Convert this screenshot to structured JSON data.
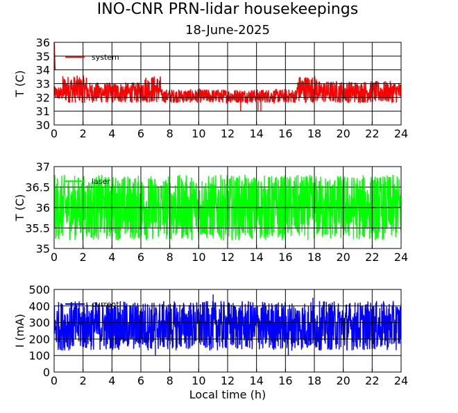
{
  "figure": {
    "title": "INO-CNR PRN-lidar housekeepings",
    "subtitle": "18-June-2025"
  },
  "chart_data": [
    {
      "type": "line",
      "ylabel": "T (C)",
      "xlabel": "",
      "xlim": [
        0,
        24
      ],
      "ylim": [
        30,
        36
      ],
      "xticks": [
        "0",
        "2",
        "4",
        "6",
        "8",
        "10",
        "12",
        "14",
        "16",
        "18",
        "20",
        "22",
        "24"
      ],
      "yticks": [
        "30",
        "31",
        "32",
        "33",
        "34",
        "35",
        "36"
      ],
      "grid": true,
      "legend_position": "top-left",
      "series": [
        {
          "name": "system",
          "color": "#ff0000",
          "spike": [
            [
              0.0,
              36.0
            ],
            [
              0.06,
              34.0
            ]
          ],
          "segments": [
            {
              "x0": 0.0,
              "x1": 0.6,
              "lo": 31.8,
              "hi": 32.8
            },
            {
              "x0": 0.6,
              "x1": 2.3,
              "lo": 31.6,
              "hi": 33.6
            },
            {
              "x0": 2.3,
              "x1": 6.1,
              "lo": 31.6,
              "hi": 33.1
            },
            {
              "x0": 6.1,
              "x1": 7.4,
              "lo": 31.6,
              "hi": 33.6
            },
            {
              "x0": 7.4,
              "x1": 16.8,
              "lo": 31.6,
              "hi": 32.6
            },
            {
              "x0": 16.8,
              "x1": 18.2,
              "lo": 31.6,
              "hi": 33.6
            },
            {
              "x0": 18.2,
              "x1": 24.0,
              "lo": 31.6,
              "hi": 33.2
            }
          ],
          "dips": [
            [
              12.9,
              31.0
            ],
            [
              14.1,
              31.0
            ],
            [
              14.3,
              31.0
            ]
          ]
        }
      ]
    },
    {
      "type": "line",
      "ylabel": "T (C)",
      "xlabel": "",
      "xlim": [
        0,
        24
      ],
      "ylim": [
        35,
        37
      ],
      "xticks": [
        "0",
        "2",
        "4",
        "6",
        "8",
        "10",
        "12",
        "14",
        "16",
        "18",
        "20",
        "22",
        "24"
      ],
      "yticks": [
        "35",
        "35.5",
        "36",
        "36.5",
        "37"
      ],
      "grid": true,
      "legend_position": "top-left",
      "series": [
        {
          "name": "laser",
          "color": "#00ff00",
          "segments": [
            {
              "x0": 0.0,
              "x1": 24.0,
              "lo": 35.2,
              "hi": 36.8
            }
          ],
          "dips": []
        }
      ]
    },
    {
      "type": "line",
      "ylabel": "I (mA)",
      "xlabel": "Local time (h)",
      "xlim": [
        0,
        24
      ],
      "ylim": [
        0,
        500
      ],
      "xticks": [
        "0",
        "2",
        "4",
        "6",
        "8",
        "10",
        "12",
        "14",
        "16",
        "18",
        "20",
        "22",
        "24"
      ],
      "yticks": [
        "0",
        "100",
        "200",
        "300",
        "400",
        "500"
      ],
      "grid": true,
      "legend_position": "top-left",
      "series": [
        {
          "name": "current",
          "color": "#0000ff",
          "segments": [
            {
              "x0": 0.0,
              "x1": 24.0,
              "lo": 130,
              "hi": 430
            }
          ],
          "dips": [
            [
              11.0,
              470
            ],
            [
              17.9,
              450
            ],
            [
              7.0,
              100
            ],
            [
              16.2,
              100
            ]
          ]
        }
      ]
    }
  ]
}
